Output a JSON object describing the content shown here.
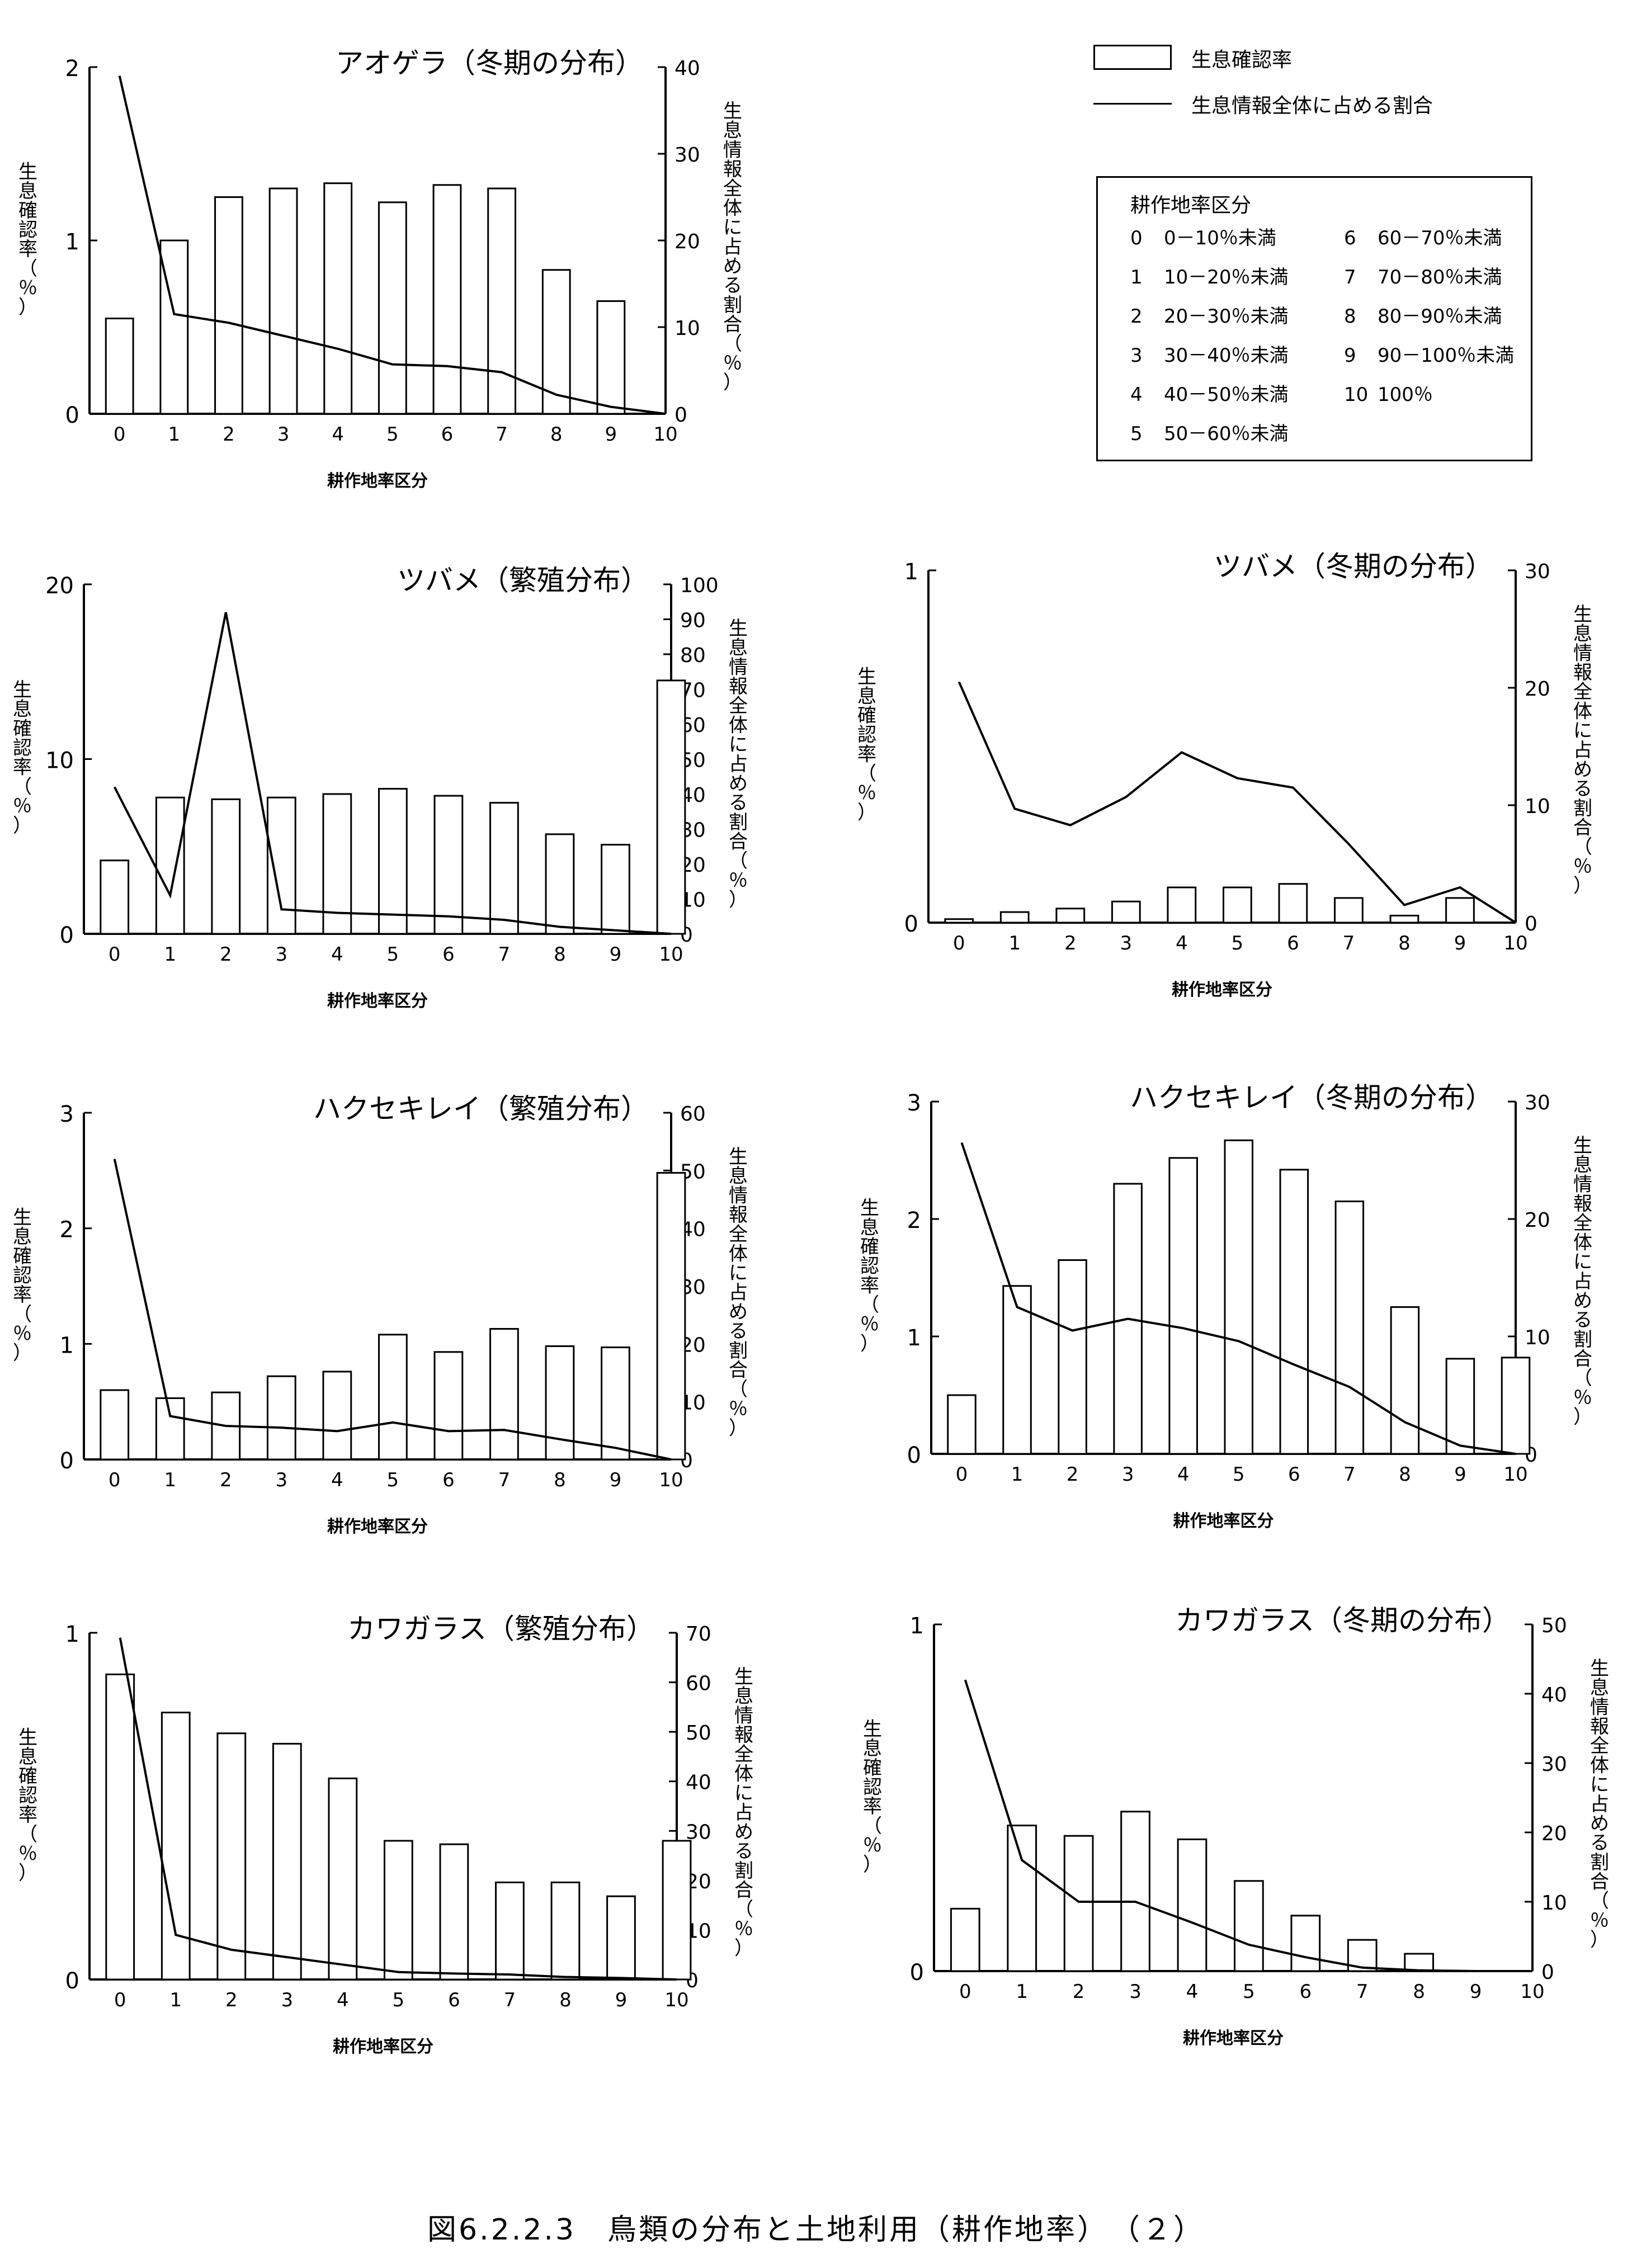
{
  "caption": "図6.2.2.3　鳥類の分布と土地利用（耕作地率）　（２）",
  "legend": {
    "bar_label": "生息確認率",
    "line_label": "生息情報全体に占める割合"
  },
  "category_box": {
    "title": "耕作地率区分",
    "entries": [
      {
        "code": "0",
        "label": "0－10％未満"
      },
      {
        "code": "1",
        "label": "10－20％未満"
      },
      {
        "code": "2",
        "label": "20－30％未満"
      },
      {
        "code": "3",
        "label": "30－40％未満"
      },
      {
        "code": "4",
        "label": "40－50％未満"
      },
      {
        "code": "5",
        "label": "50－60％未満"
      },
      {
        "code": "6",
        "label": "60－70％未満"
      },
      {
        "code": "7",
        "label": "70－80％未満"
      },
      {
        "code": "8",
        "label": "80－90％未満"
      },
      {
        "code": "9",
        "label": "90－100％未満"
      },
      {
        "code": "10",
        "label": "100％"
      }
    ]
  },
  "colors": {
    "ink": "#000000",
    "paper": "#ffffff"
  },
  "chart_data": [
    {
      "type": "bar",
      "title": "アオゲラ（冬期の分布）",
      "xlabel": "耕作地率区分",
      "ylabel": "生息確認率（％）",
      "y2label": "生息情報全体に占める割合（％）",
      "categories": [
        "0",
        "1",
        "2",
        "3",
        "4",
        "5",
        "6",
        "7",
        "8",
        "9",
        "10"
      ],
      "bar_values": [
        0.55,
        1.0,
        1.25,
        1.3,
        1.33,
        1.22,
        1.32,
        1.3,
        0.83,
        0.65,
        0
      ],
      "line_values": [
        39,
        11.5,
        10.5,
        9,
        7.5,
        5.7,
        5.5,
        4.8,
        2.2,
        0.8,
        0
      ],
      "ylim": [
        0,
        2
      ],
      "yticks": [
        "0",
        "1",
        "2"
      ],
      "y2lim": [
        0,
        40
      ],
      "y2ticks": [
        "0",
        "10",
        "20",
        "30",
        "40"
      ]
    },
    {
      "type": "bar",
      "title": "ツバメ（繁殖分布）",
      "xlabel": "耕作地率区分",
      "ylabel": "生息確認率（％）",
      "y2label": "生息情報全体に占める割合（％）",
      "categories": [
        "0",
        "1",
        "2",
        "3",
        "4",
        "5",
        "6",
        "7",
        "8",
        "9",
        "10"
      ],
      "bar_values": [
        4.2,
        7.8,
        7.7,
        7.8,
        8.0,
        8.3,
        7.9,
        7.5,
        5.7,
        5.1,
        14.5
      ],
      "line_values": [
        42,
        11,
        92,
        7,
        6,
        5.5,
        5,
        4,
        2,
        1,
        0
      ],
      "ylim": [
        0,
        20
      ],
      "yticks": [
        "0",
        "10",
        "20"
      ],
      "y2lim": [
        0,
        100
      ],
      "y2ticks": [
        "0",
        "10",
        "20",
        "30",
        "40",
        "50",
        "60",
        "70",
        "80",
        "90",
        "100"
      ]
    },
    {
      "type": "bar",
      "title": "ツバメ（冬期の分布）",
      "xlabel": "耕作地率区分",
      "ylabel": "生息確認率（％）",
      "y2label": "生息情報全体に占める割合（％）",
      "categories": [
        "0",
        "1",
        "2",
        "3",
        "4",
        "5",
        "6",
        "7",
        "8",
        "9",
        "10"
      ],
      "bar_values": [
        0.01,
        0.03,
        0.04,
        0.06,
        0.1,
        0.1,
        0.11,
        0.07,
        0.02,
        0.07,
        0
      ],
      "line_values": [
        20.5,
        9.7,
        8.3,
        10.7,
        14.5,
        12.3,
        11.5,
        6.7,
        1.5,
        3,
        0
      ],
      "ylim": [
        0,
        1
      ],
      "yticks": [
        "0",
        "1"
      ],
      "y2lim": [
        0,
        30
      ],
      "y2ticks": [
        "0",
        "10",
        "20",
        "30"
      ]
    },
    {
      "type": "bar",
      "title": "ハクセキレイ（繁殖分布）",
      "xlabel": "耕作地率区分",
      "ylabel": "生息確認率（％）",
      "y2label": "生息情報全体に占める割合（％）",
      "categories": [
        "0",
        "1",
        "2",
        "3",
        "4",
        "5",
        "6",
        "7",
        "8",
        "9",
        "10"
      ],
      "bar_values": [
        0.6,
        0.53,
        0.58,
        0.72,
        0.76,
        1.08,
        0.93,
        1.13,
        0.98,
        0.97,
        2.48
      ],
      "line_values": [
        52,
        7.5,
        5.8,
        5.5,
        4.9,
        6.4,
        4.9,
        5.1,
        3.5,
        2,
        0
      ],
      "ylim": [
        0,
        3
      ],
      "yticks": [
        "0",
        "1",
        "2",
        "3"
      ],
      "y2lim": [
        0,
        60
      ],
      "y2ticks": [
        "0",
        "10",
        "20",
        "30",
        "40",
        "50",
        "60"
      ]
    },
    {
      "type": "bar",
      "title": "ハクセキレイ（冬期の分布）",
      "xlabel": "耕作地率区分",
      "ylabel": "生息確認率（％）",
      "y2label": "生息情報全体に占める割合（％）",
      "categories": [
        "0",
        "1",
        "2",
        "3",
        "4",
        "5",
        "6",
        "7",
        "8",
        "9",
        "10"
      ],
      "bar_values": [
        0.5,
        1.43,
        1.65,
        2.3,
        2.52,
        2.67,
        2.42,
        2.15,
        1.25,
        0.81,
        0.82
      ],
      "line_values": [
        26.5,
        12.5,
        10.5,
        11.5,
        10.7,
        9.6,
        7.6,
        5.7,
        2.7,
        0.7,
        0
      ],
      "ylim": [
        0,
        3
      ],
      "yticks": [
        "0",
        "1",
        "2",
        "3"
      ],
      "y2lim": [
        0,
        30
      ],
      "y2ticks": [
        "0",
        "10",
        "20",
        "30"
      ]
    },
    {
      "type": "bar",
      "title": "カワガラス（繁殖分布）",
      "xlabel": "耕作地率区分",
      "ylabel": "生息確認率（％）",
      "y2label": "生息情報全体に占める割合（％）",
      "categories": [
        "0",
        "1",
        "2",
        "3",
        "4",
        "5",
        "6",
        "7",
        "8",
        "9",
        "10"
      ],
      "bar_values": [
        0.88,
        0.77,
        0.71,
        0.68,
        0.58,
        0.4,
        0.39,
        0.28,
        0.28,
        0.24,
        0.4
      ],
      "line_values": [
        69,
        9,
        6,
        4.5,
        3,
        1.5,
        1.2,
        1,
        0.5,
        0.3,
        0
      ],
      "ylim": [
        0,
        1
      ],
      "yticks": [
        "0",
        "1"
      ],
      "y2lim": [
        0,
        70
      ],
      "y2ticks": [
        "0",
        "10",
        "20",
        "30",
        "40",
        "50",
        "60",
        "70"
      ]
    },
    {
      "type": "bar",
      "title": "カワガラス（冬期の分布）",
      "xlabel": "耕作地率区分",
      "ylabel": "生息確認率（％）",
      "y2label": "生息情報全体に占める割合（％）",
      "categories": [
        "0",
        "1",
        "2",
        "3",
        "4",
        "5",
        "6",
        "7",
        "8",
        "9",
        "10"
      ],
      "bar_values": [
        0.18,
        0.42,
        0.39,
        0.46,
        0.38,
        0.26,
        0.16,
        0.09,
        0.05,
        0,
        0
      ],
      "line_values": [
        42,
        16,
        10,
        10,
        7,
        3.8,
        2,
        0.5,
        0.1,
        0,
        0
      ],
      "ylim": [
        0,
        1
      ],
      "yticks": [
        "0",
        "1"
      ],
      "y2lim": [
        0,
        50
      ],
      "y2ticks": [
        "0",
        "10",
        "20",
        "30",
        "40",
        "50"
      ]
    }
  ]
}
